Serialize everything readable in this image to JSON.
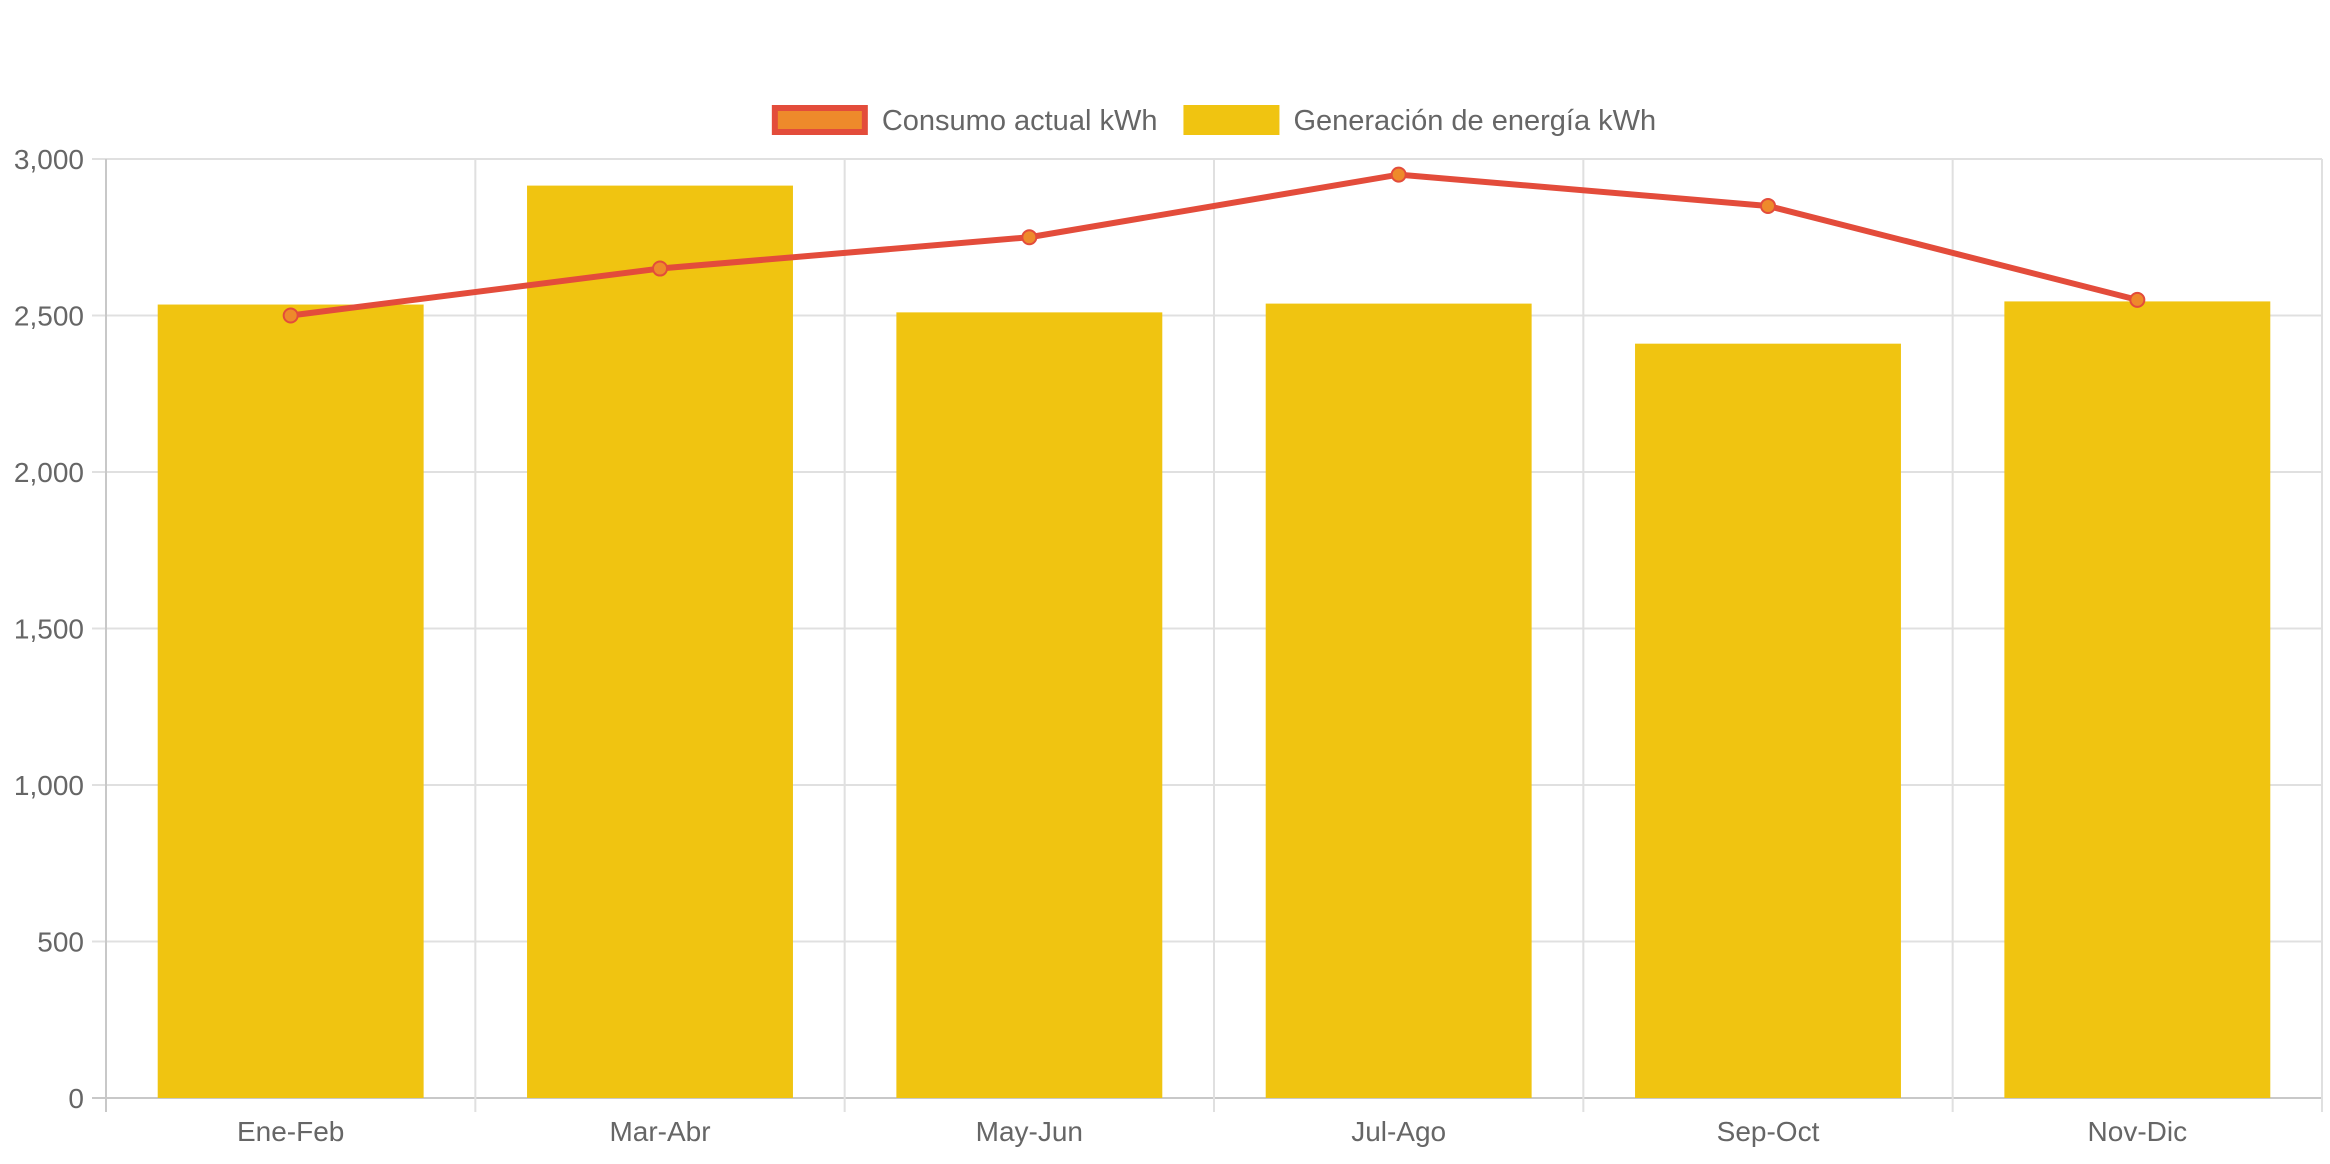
{
  "chart_data": {
    "type": "bar",
    "categories": [
      "Ene-Feb",
      "Mar-Abr",
      "May-Jun",
      "Jul-Ago",
      "Sep-Oct",
      "Nov-Dic"
    ],
    "series": [
      {
        "name": "Consumo actual kWh",
        "type": "line",
        "values": [
          2500,
          2650,
          2750,
          2950,
          2850,
          2550
        ],
        "color": "#e34c3b",
        "point_fill": "#ee8a2b"
      },
      {
        "name": "Generación de energía kWh",
        "type": "bar",
        "values": [
          2535,
          2915,
          2510,
          2538,
          2410,
          2545
        ],
        "color": "#f0c411"
      }
    ],
    "y_ticks": [
      "0",
      "500",
      "1,000",
      "1,500",
      "2,000",
      "2,500",
      "3,000"
    ],
    "y_tick_values": [
      0,
      500,
      1000,
      1500,
      2000,
      2500,
      3000
    ],
    "ylim": [
      0,
      3000
    ],
    "grid": true,
    "legend_position": "top-center",
    "legend_swatch_fill": "#ee8a2b",
    "grid_color": "#e0e0e0",
    "axis_color": "#c8c8c8",
    "text_color": "#666666"
  }
}
